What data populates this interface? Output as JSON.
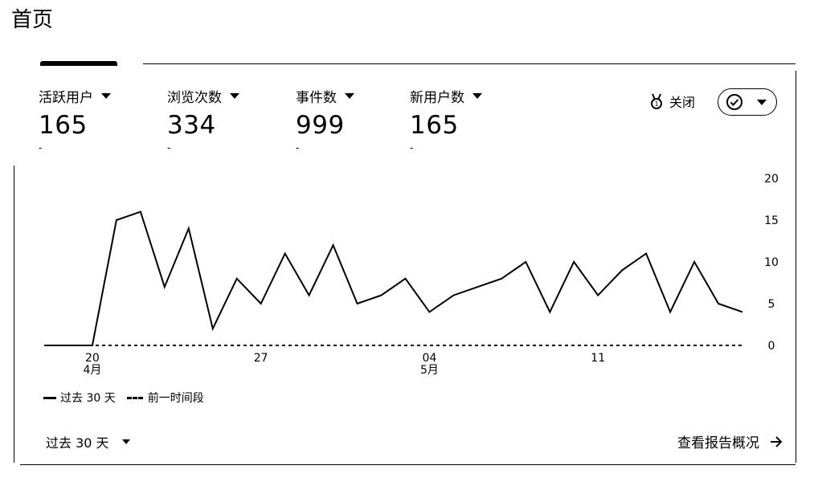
{
  "page": {
    "title": "首页"
  },
  "metrics": [
    {
      "label": "活跃用户",
      "value": "165",
      "delta": "-"
    },
    {
      "label": "浏览次数",
      "value": "334",
      "delta": "-"
    },
    {
      "label": "事件数",
      "value": "999",
      "delta": "-"
    },
    {
      "label": "新用户数",
      "value": "165",
      "delta": "-"
    }
  ],
  "actions": {
    "close_label": "关闭",
    "close_icon": "medal-icon",
    "status_icon": "check-circle-icon"
  },
  "legend": {
    "current": "过去 30 天",
    "previous": "前一时间段"
  },
  "footer": {
    "range_label": "过去 30 天",
    "report_link": "查看报告概况"
  },
  "chart_data": {
    "type": "line",
    "x": [
      "04-18",
      "04-19",
      "04-20",
      "04-21",
      "04-22",
      "04-23",
      "04-24",
      "04-25",
      "04-26",
      "04-27",
      "04-28",
      "04-29",
      "04-30",
      "05-01",
      "05-02",
      "05-03",
      "05-04",
      "05-05",
      "05-06",
      "05-07",
      "05-08",
      "05-09",
      "05-10",
      "05-11",
      "05-12",
      "05-13",
      "05-14",
      "05-15",
      "05-16",
      "05-17"
    ],
    "x_ticks": [
      {
        "index": 2,
        "label": "20",
        "sub": "4月"
      },
      {
        "index": 9,
        "label": "27",
        "sub": ""
      },
      {
        "index": 16,
        "label": "04",
        "sub": "5月"
      },
      {
        "index": 23,
        "label": "11",
        "sub": ""
      }
    ],
    "series": [
      {
        "name": "过去 30 天",
        "style": "solid",
        "values": [
          0,
          0,
          0,
          15,
          16,
          7,
          14,
          2,
          8,
          5,
          11,
          6,
          12,
          5,
          6,
          8,
          4,
          6,
          7,
          8,
          10,
          4,
          10,
          6,
          9,
          11,
          4,
          10,
          5,
          4
        ]
      },
      {
        "name": "前一时间段",
        "style": "dashed",
        "values": [
          0,
          0,
          0,
          0,
          0,
          0,
          0,
          0,
          0,
          0,
          0,
          0,
          0,
          0,
          0,
          0,
          0,
          0,
          0,
          0,
          0,
          0,
          0,
          0,
          0,
          0,
          0,
          0,
          0,
          0
        ]
      }
    ],
    "y_ticks": [
      0,
      5,
      10,
      15,
      20
    ],
    "ylim": [
      0,
      20
    ],
    "y_axis_position": "right",
    "grid": false,
    "legend_position": "bottom-left",
    "color": "#000000"
  }
}
